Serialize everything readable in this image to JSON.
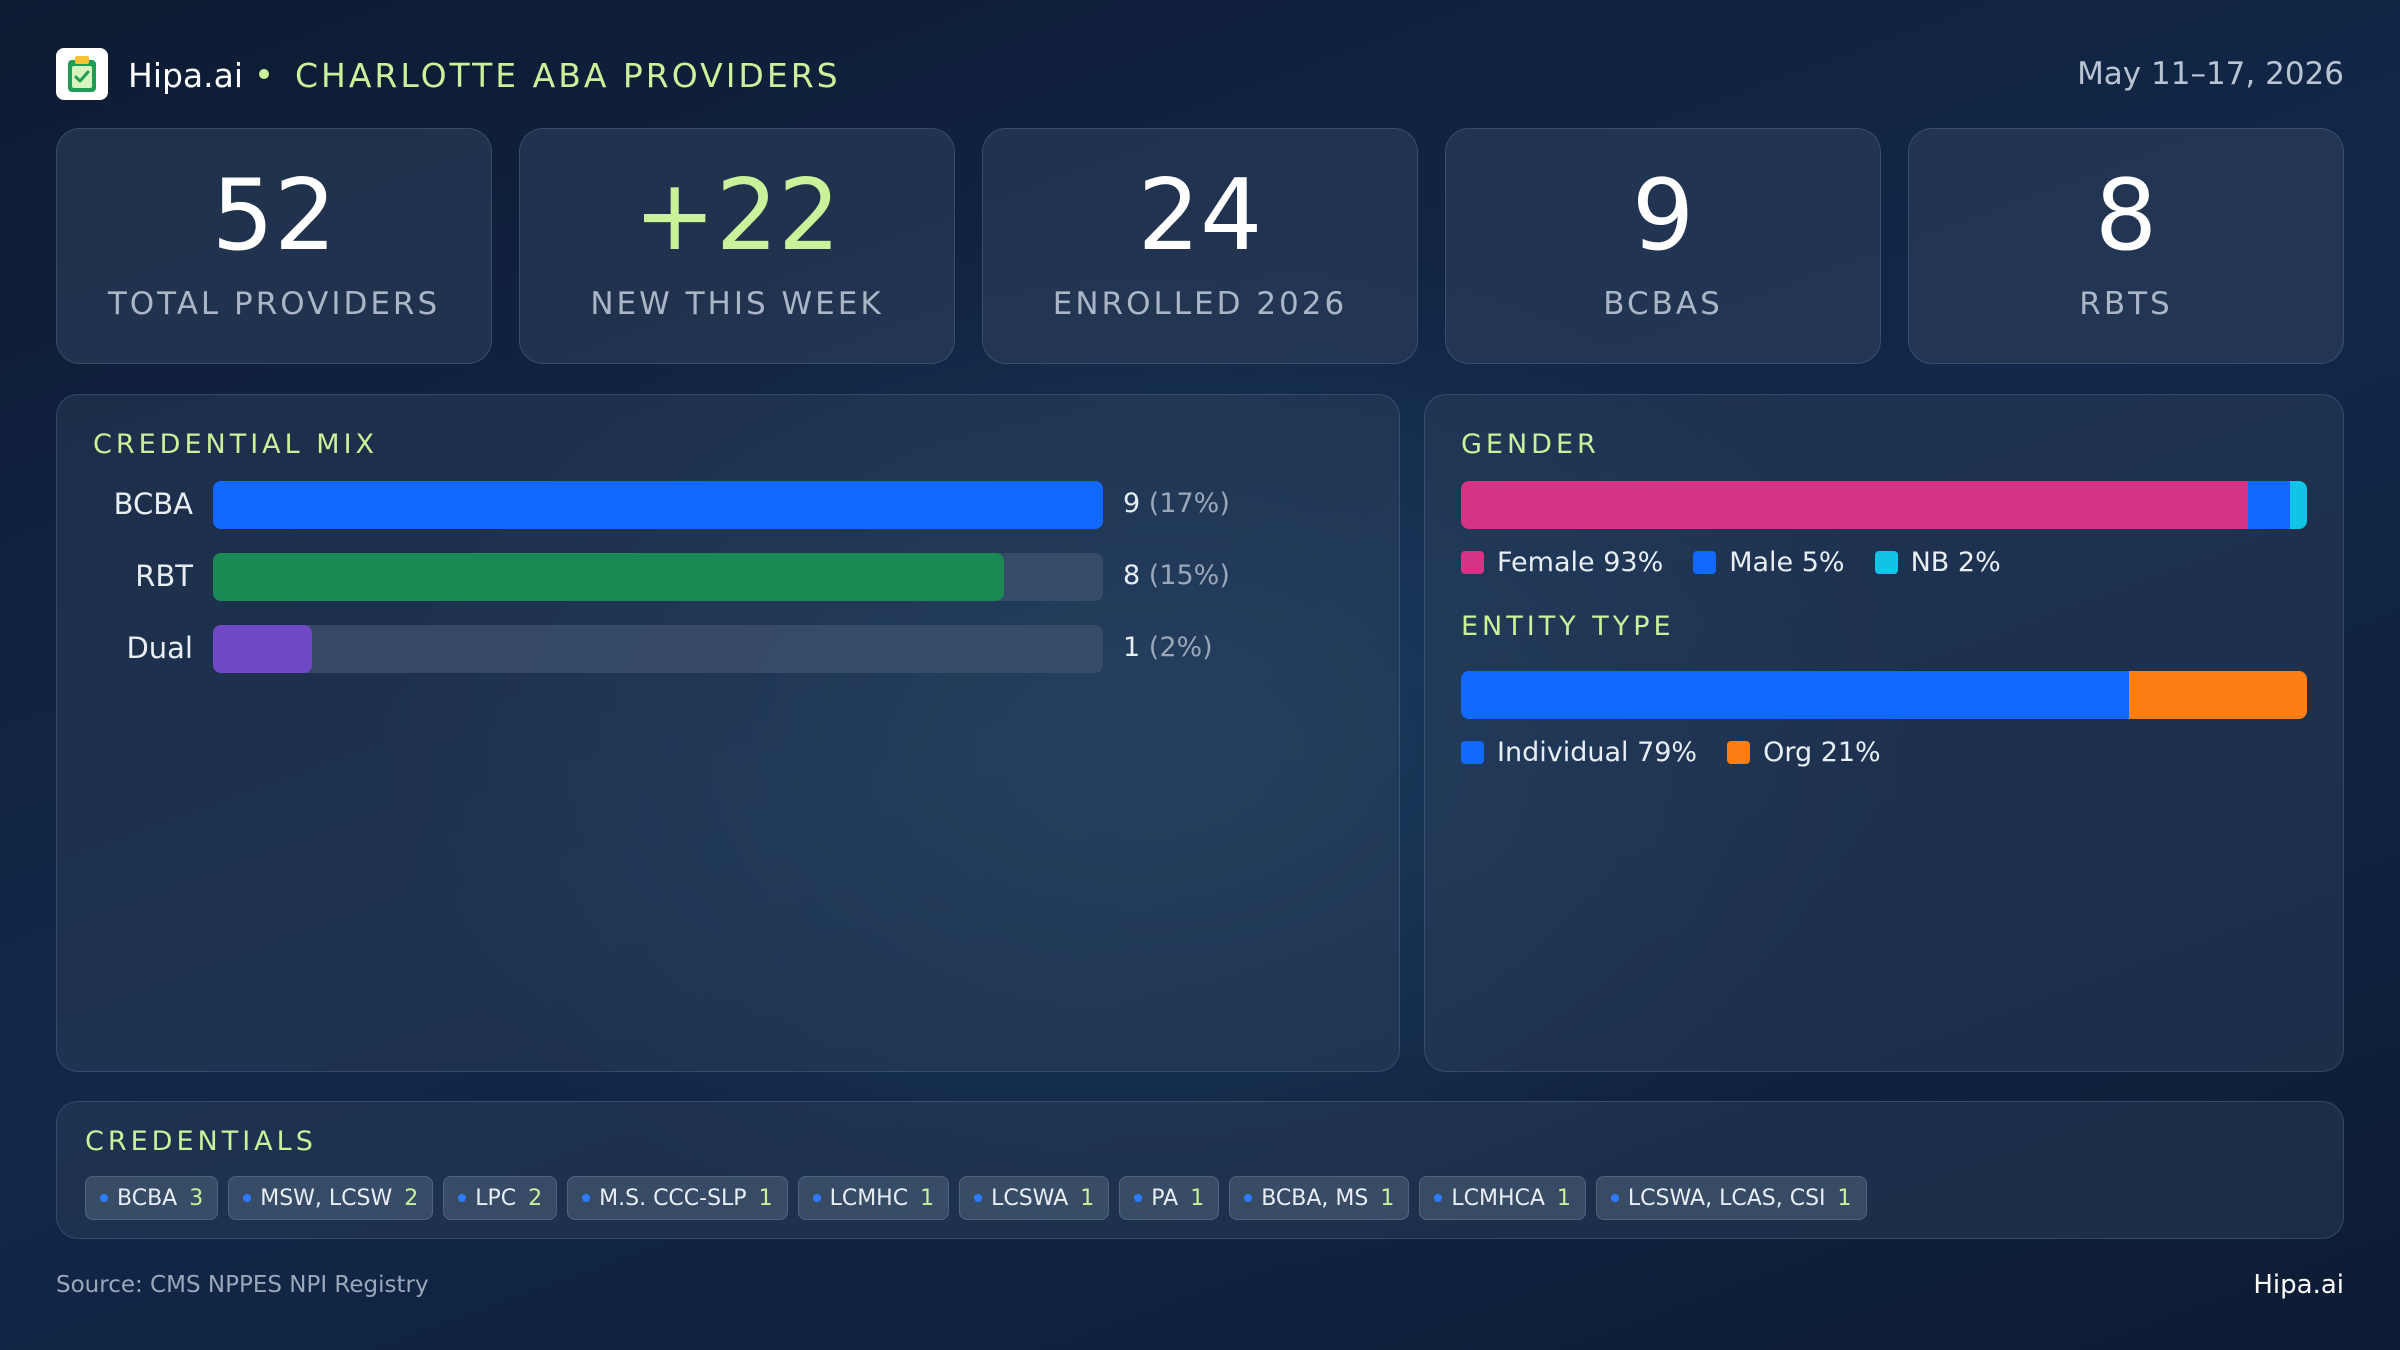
{
  "header": {
    "brand": "Hipa.ai",
    "title": "CHARLOTTE ABA PROVIDERS",
    "date_range": "May 11–17, 2026",
    "logo_icon": "clipboard-check-icon"
  },
  "stats": [
    {
      "value": "52",
      "label": "TOTAL PROVIDERS"
    },
    {
      "value": "+22",
      "label": "NEW THIS WEEK"
    },
    {
      "value": "24",
      "label": "ENROLLED 2026"
    },
    {
      "value": "9",
      "label": "BCBAS"
    },
    {
      "value": "8",
      "label": "RBTS"
    }
  ],
  "colors": {
    "accent": "#c9f29b",
    "bcba": "#1269ff",
    "rbt": "#1a8a54",
    "dual": "#7048c8",
    "female": "#d63384",
    "male": "#1269ff",
    "nb": "#10c4e8",
    "individual": "#1269ff",
    "org": "#fd7e14"
  },
  "chart_data": [
    {
      "type": "bar",
      "orientation": "horizontal",
      "title": "CREDENTIAL MIX",
      "categories": [
        "BCBA",
        "RBT",
        "Dual"
      ],
      "values": [
        9,
        8,
        1
      ],
      "percent_labels": [
        "(17%)",
        "(15%)",
        "(2%)"
      ],
      "xlim": [
        0,
        9
      ]
    },
    {
      "type": "bar",
      "stacked": true,
      "orientation": "horizontal",
      "title": "GENDER",
      "series": [
        {
          "name": "Female",
          "value": 93,
          "label": "Female 93%"
        },
        {
          "name": "Male",
          "value": 5,
          "label": "Male 5%"
        },
        {
          "name": "NB",
          "value": 2,
          "label": "NB 2%"
        }
      ],
      "unit": "%"
    },
    {
      "type": "bar",
      "stacked": true,
      "orientation": "horizontal",
      "title": "ENTITY TYPE",
      "series": [
        {
          "name": "Individual",
          "value": 79,
          "label": "Individual 79%"
        },
        {
          "name": "Org",
          "value": 21,
          "label": "Org 21%"
        }
      ],
      "unit": "%"
    }
  ],
  "credentials": {
    "title": "CREDENTIALS",
    "items": [
      {
        "name": "BCBA",
        "count": "3"
      },
      {
        "name": "MSW, LCSW",
        "count": "2"
      },
      {
        "name": "LPC",
        "count": "2"
      },
      {
        "name": "M.S. CCC-SLP",
        "count": "1"
      },
      {
        "name": "LCMHC",
        "count": "1"
      },
      {
        "name": "LCSWA",
        "count": "1"
      },
      {
        "name": "PA",
        "count": "1"
      },
      {
        "name": "BCBA, MS",
        "count": "1"
      },
      {
        "name": "LCMHCA",
        "count": "1"
      },
      {
        "name": "LCSWA, LCAS, CSI",
        "count": "1"
      }
    ]
  },
  "footer": {
    "source": "Source: CMS NPPES NPI Registry",
    "brand": "Hipa.ai"
  }
}
